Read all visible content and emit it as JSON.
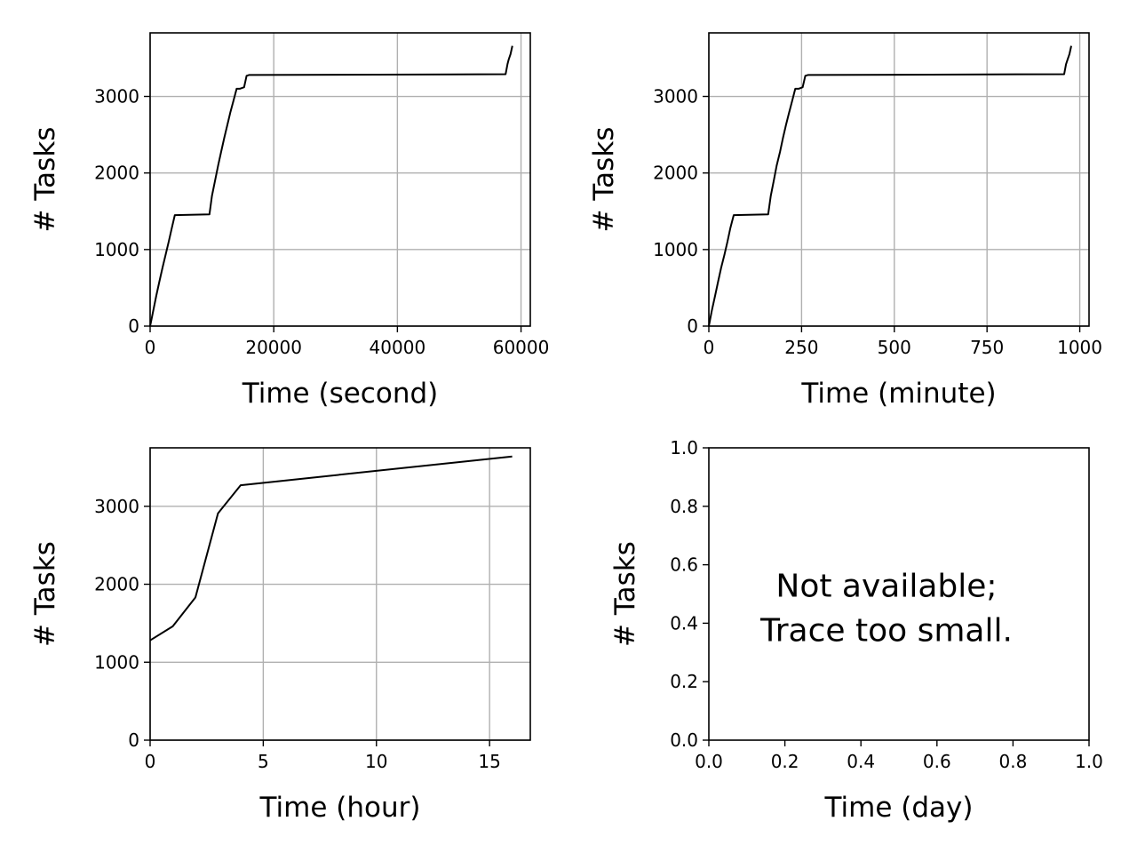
{
  "chart_data": [
    {
      "type": "line",
      "xlabel": "Time (second)",
      "ylabel": "# Tasks",
      "xlim": [
        0,
        61500
      ],
      "ylim": [
        0,
        3830
      ],
      "xticks": [
        0,
        20000,
        40000,
        60000
      ],
      "xtick_labels": [
        "0",
        "20000",
        "40000",
        "60000"
      ],
      "yticks": [
        0,
        1000,
        2000,
        3000
      ],
      "ytick_labels": [
        "0",
        "1000",
        "2000",
        "3000"
      ],
      "grid": true,
      "series": [
        {
          "color": "#000000",
          "x": [
            0,
            500,
            1000,
            1500,
            2000,
            2500,
            3000,
            3500,
            4000,
            9600,
            10000,
            10500,
            11000,
            11500,
            12000,
            12500,
            13000,
            13500,
            14000,
            14500,
            15200,
            15600,
            16000,
            57500,
            57800,
            58000,
            58300,
            58600
          ],
          "y": [
            0,
            200,
            400,
            580,
            760,
            930,
            1100,
            1280,
            1450,
            1460,
            1700,
            1900,
            2100,
            2280,
            2460,
            2630,
            2800,
            2950,
            3100,
            3100,
            3120,
            3270,
            3280,
            3290,
            3420,
            3480,
            3550,
            3660
          ]
        }
      ]
    },
    {
      "type": "line",
      "xlabel": "Time (minute)",
      "ylabel": "# Tasks",
      "xlim": [
        0,
        1025
      ],
      "ylim": [
        0,
        3830
      ],
      "xticks": [
        0,
        250,
        500,
        750,
        1000
      ],
      "xtick_labels": [
        "0",
        "250",
        "500",
        "750",
        "1000"
      ],
      "yticks": [
        0,
        1000,
        2000,
        3000
      ],
      "ytick_labels": [
        "0",
        "1000",
        "2000",
        "3000"
      ],
      "grid": true,
      "series": [
        {
          "color": "#000000",
          "x": [
            0,
            8,
            17,
            25,
            33,
            42,
            50,
            58,
            67,
            160,
            167,
            175,
            183,
            192,
            200,
            208,
            217,
            225,
            233,
            242,
            253,
            260,
            267,
            958,
            963,
            967,
            972,
            977
          ],
          "y": [
            0,
            200,
            400,
            580,
            760,
            930,
            1100,
            1280,
            1450,
            1460,
            1700,
            1900,
            2100,
            2280,
            2460,
            2630,
            2800,
            2950,
            3100,
            3100,
            3120,
            3270,
            3280,
            3290,
            3420,
            3480,
            3550,
            3660
          ]
        }
      ]
    },
    {
      "type": "line",
      "xlabel": "Time (hour)",
      "ylabel": "# Tasks",
      "xlim": [
        0,
        16.8
      ],
      "ylim": [
        0,
        3750
      ],
      "xticks": [
        0,
        5,
        10,
        15
      ],
      "xtick_labels": [
        "0",
        "5",
        "10",
        "15"
      ],
      "yticks": [
        0,
        1000,
        2000,
        3000
      ],
      "ytick_labels": [
        "0",
        "1000",
        "2000",
        "3000"
      ],
      "grid": true,
      "series": [
        {
          "color": "#000000",
          "x": [
            0,
            1,
            2,
            3,
            4,
            16
          ],
          "y": [
            1280,
            1460,
            1830,
            2910,
            3270,
            3640
          ]
        }
      ]
    },
    {
      "type": "line",
      "xlabel": "Time (day)",
      "ylabel": "# Tasks",
      "xlim": [
        0,
        1
      ],
      "ylim": [
        0,
        1
      ],
      "xticks": [
        0,
        0.2,
        0.4,
        0.6,
        0.8,
        1.0
      ],
      "xtick_labels": [
        "0.0",
        "0.2",
        "0.4",
        "0.6",
        "0.8",
        "1.0"
      ],
      "yticks": [
        0,
        0.2,
        0.4,
        0.6,
        0.8,
        1.0
      ],
      "ytick_labels": [
        "0.0",
        "0.2",
        "0.4",
        "0.6",
        "0.8",
        "1.0"
      ],
      "grid": false,
      "series": [],
      "annotation": [
        "Not available;",
        "Trace too small."
      ]
    }
  ]
}
